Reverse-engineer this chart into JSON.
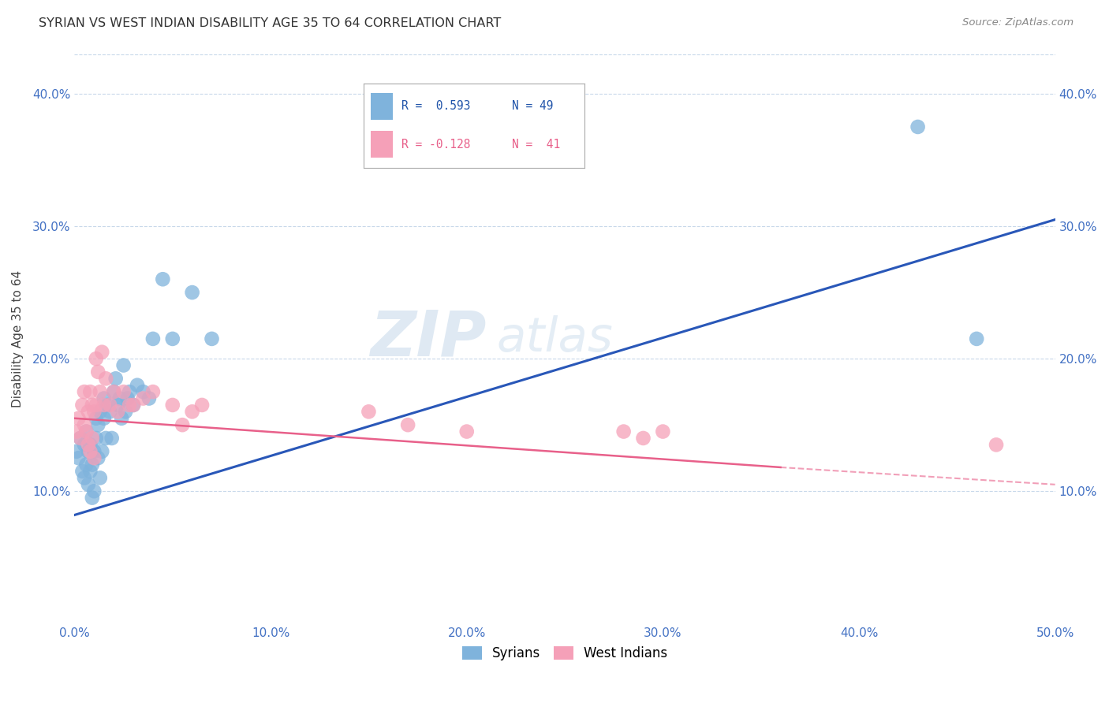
{
  "title": "SYRIAN VS WEST INDIAN DISABILITY AGE 35 TO 64 CORRELATION CHART",
  "source": "Source: ZipAtlas.com",
  "ylabel": "Disability Age 35 to 64",
  "xlim": [
    0.0,
    0.5
  ],
  "ylim": [
    0.0,
    0.43
  ],
  "xticks": [
    0.0,
    0.1,
    0.2,
    0.3,
    0.4,
    0.5
  ],
  "yticks": [
    0.1,
    0.2,
    0.3,
    0.4
  ],
  "ytick_labels": [
    "10.0%",
    "20.0%",
    "30.0%",
    "40.0%"
  ],
  "xtick_labels": [
    "0.0%",
    "10.0%",
    "20.0%",
    "30.0%",
    "40.0%",
    "50.0%"
  ],
  "legend_labels": [
    "Syrians",
    "West Indians"
  ],
  "legend_r_syrians": "R =  0.593",
  "legend_n_syrians": "N = 49",
  "legend_r_westindians": "R = -0.128",
  "legend_n_westindians": "N =  41",
  "color_syrians": "#7fb3dc",
  "color_westindians": "#f5a0b8",
  "color_line_syrians": "#2957b8",
  "color_line_westindians": "#e8608a",
  "watermark_zip": "ZIP",
  "watermark_atlas": "atlas",
  "syrians_x": [
    0.001,
    0.002,
    0.003,
    0.004,
    0.005,
    0.005,
    0.006,
    0.006,
    0.007,
    0.007,
    0.008,
    0.008,
    0.009,
    0.009,
    0.01,
    0.01,
    0.011,
    0.011,
    0.012,
    0.012,
    0.013,
    0.013,
    0.014,
    0.015,
    0.015,
    0.016,
    0.017,
    0.018,
    0.019,
    0.02,
    0.021,
    0.022,
    0.023,
    0.024,
    0.025,
    0.026,
    0.027,
    0.028,
    0.03,
    0.032,
    0.035,
    0.038,
    0.04,
    0.045,
    0.05,
    0.06,
    0.07,
    0.43,
    0.46
  ],
  "syrians_y": [
    0.13,
    0.125,
    0.14,
    0.115,
    0.11,
    0.135,
    0.12,
    0.145,
    0.105,
    0.13,
    0.115,
    0.135,
    0.095,
    0.12,
    0.1,
    0.13,
    0.14,
    0.155,
    0.125,
    0.15,
    0.11,
    0.16,
    0.13,
    0.155,
    0.17,
    0.14,
    0.165,
    0.16,
    0.14,
    0.175,
    0.185,
    0.165,
    0.17,
    0.155,
    0.195,
    0.16,
    0.17,
    0.175,
    0.165,
    0.18,
    0.175,
    0.17,
    0.215,
    0.26,
    0.215,
    0.25,
    0.215,
    0.375,
    0.215
  ],
  "westindians_x": [
    0.001,
    0.002,
    0.003,
    0.004,
    0.005,
    0.005,
    0.006,
    0.007,
    0.007,
    0.008,
    0.008,
    0.009,
    0.009,
    0.01,
    0.01,
    0.011,
    0.011,
    0.012,
    0.013,
    0.014,
    0.015,
    0.016,
    0.018,
    0.02,
    0.022,
    0.025,
    0.028,
    0.03,
    0.035,
    0.04,
    0.05,
    0.055,
    0.06,
    0.065,
    0.15,
    0.17,
    0.2,
    0.28,
    0.29,
    0.3,
    0.47
  ],
  "westindians_y": [
    0.145,
    0.155,
    0.14,
    0.165,
    0.15,
    0.175,
    0.145,
    0.135,
    0.16,
    0.13,
    0.175,
    0.14,
    0.165,
    0.125,
    0.16,
    0.2,
    0.165,
    0.19,
    0.175,
    0.205,
    0.165,
    0.185,
    0.165,
    0.175,
    0.16,
    0.175,
    0.165,
    0.165,
    0.17,
    0.175,
    0.165,
    0.15,
    0.16,
    0.165,
    0.16,
    0.15,
    0.145,
    0.145,
    0.14,
    0.145,
    0.135
  ]
}
